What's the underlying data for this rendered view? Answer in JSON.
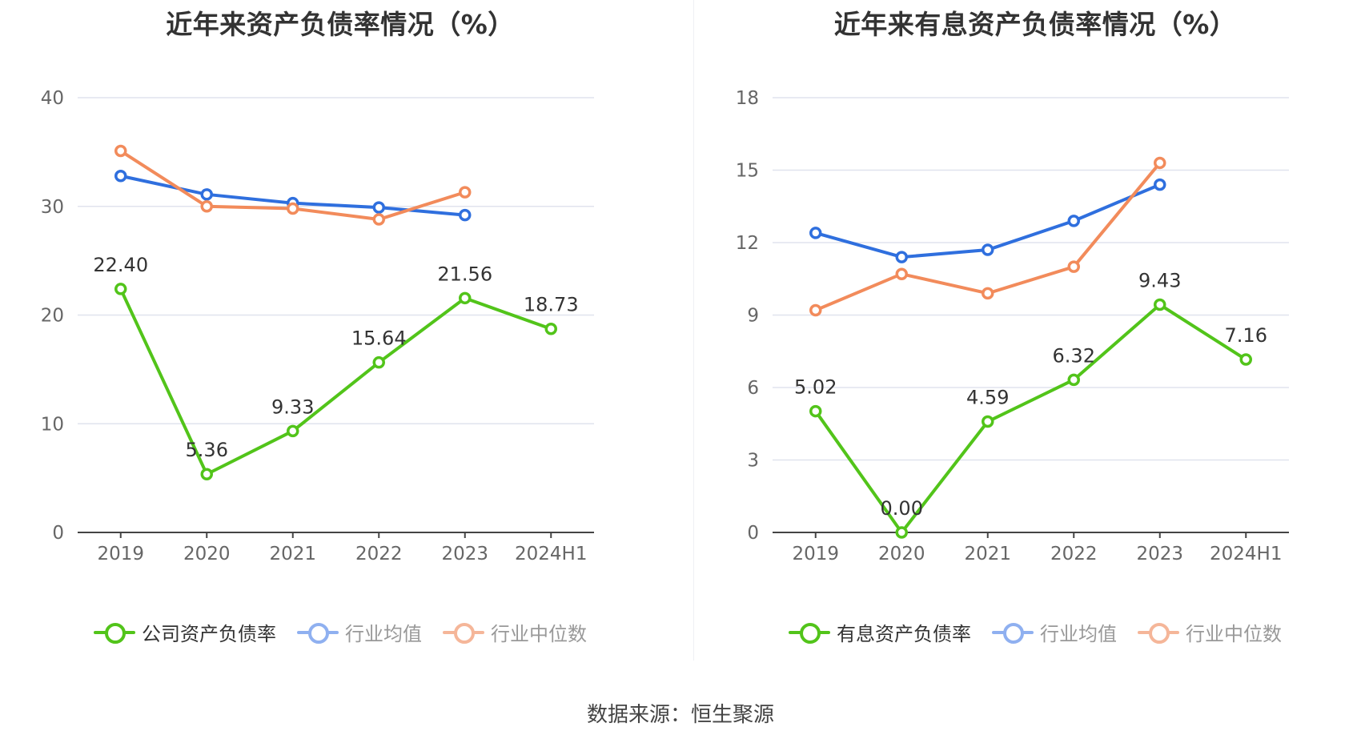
{
  "chart_data": [
    {
      "type": "line",
      "title": "近年来资产负债率情况（%）",
      "categories": [
        "2019",
        "2020",
        "2021",
        "2022",
        "2023",
        "2024H1"
      ],
      "yticks": [
        "0",
        "10",
        "20",
        "30",
        "40"
      ],
      "ylim": [
        0,
        40
      ],
      "grid": true,
      "legend_position": "bottom",
      "series": [
        {
          "name": "公司资产负债率",
          "color": "#52c41a",
          "labeled": true,
          "values": [
            22.4,
            5.36,
            9.33,
            15.64,
            21.56,
            18.73
          ],
          "labels": [
            "22.40",
            "5.36",
            "9.33",
            "15.64",
            "21.56",
            "18.73"
          ]
        },
        {
          "name": "行业均值",
          "color": "#2f6fde",
          "labeled": false,
          "values": [
            32.8,
            31.1,
            30.3,
            29.9,
            29.2,
            null
          ]
        },
        {
          "name": "行业中位数",
          "color": "#f28b5b",
          "labeled": false,
          "values": [
            35.1,
            30.0,
            29.8,
            28.8,
            31.3,
            null
          ]
        }
      ]
    },
    {
      "type": "line",
      "title": "近年来有息资产负债率情况（%）",
      "categories": [
        "2019",
        "2020",
        "2021",
        "2022",
        "2023",
        "2024H1"
      ],
      "yticks": [
        "0",
        "3",
        "6",
        "9",
        "12",
        "15",
        "18"
      ],
      "ylim": [
        0,
        18
      ],
      "grid": true,
      "legend_position": "bottom",
      "series": [
        {
          "name": "有息资产负债率",
          "color": "#52c41a",
          "labeled": true,
          "values": [
            5.02,
            0.0,
            4.59,
            6.32,
            9.43,
            7.16
          ],
          "labels": [
            "5.02",
            "0.00",
            "4.59",
            "6.32",
            "9.43",
            "7.16"
          ]
        },
        {
          "name": "行业均值",
          "color": "#2f6fde",
          "labeled": false,
          "values": [
            12.4,
            11.4,
            11.7,
            12.9,
            14.4,
            null
          ]
        },
        {
          "name": "行业中位数",
          "color": "#f28b5b",
          "labeled": false,
          "values": [
            9.2,
            10.7,
            9.9,
            11.0,
            15.3,
            null
          ]
        }
      ]
    }
  ],
  "footer": {
    "source": "数据来源：恒生聚源"
  }
}
